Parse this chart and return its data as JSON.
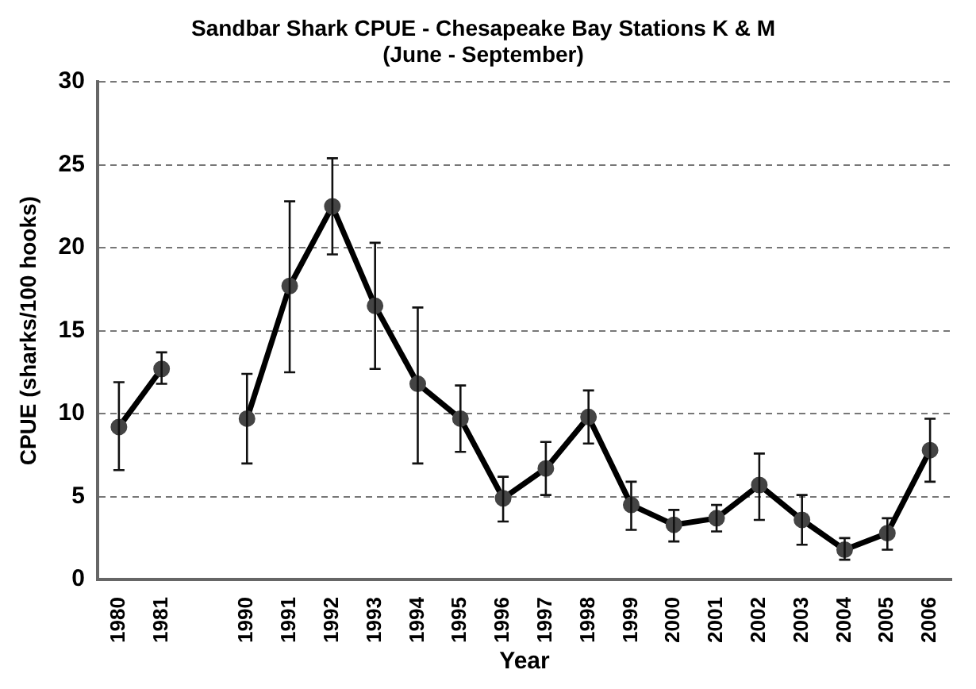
{
  "chart_data": {
    "type": "line",
    "title": "Sandbar Shark CPUE - Chesapeake Bay Stations K & M",
    "subtitle": "(June - September)",
    "xlabel": "Year",
    "ylabel": "CPUE (sharks/100 hooks)",
    "categories": [
      "1980",
      "1981",
      null,
      "1990",
      "1991",
      "1992",
      "1993",
      "1994",
      "1995",
      "1996",
      "1997",
      "1998",
      "1999",
      "2000",
      "2001",
      "2002",
      "2003",
      "2004",
      "2005",
      "2006"
    ],
    "series": [
      {
        "color": "#000000",
        "values": [
          9.2,
          12.7,
          null,
          9.7,
          17.7,
          22.5,
          16.5,
          11.8,
          9.7,
          4.9,
          6.7,
          9.8,
          4.5,
          3.3,
          3.7,
          5.7,
          3.6,
          1.8,
          2.8,
          7.8
        ],
        "errors": [
          [
            6.6,
            11.9
          ],
          [
            11.8,
            13.7
          ],
          null,
          [
            7.0,
            12.4
          ],
          [
            12.5,
            22.8
          ],
          [
            19.6,
            25.4
          ],
          [
            12.7,
            20.3
          ],
          [
            7.0,
            16.4
          ],
          [
            7.7,
            11.7
          ],
          [
            3.5,
            6.2
          ],
          [
            5.1,
            8.3
          ],
          [
            8.2,
            11.4
          ],
          [
            3.0,
            5.9
          ],
          [
            2.3,
            4.2
          ],
          [
            2.9,
            4.5
          ],
          [
            3.6,
            7.6
          ],
          [
            2.1,
            5.1
          ],
          [
            1.2,
            2.5
          ],
          [
            1.8,
            3.7
          ],
          [
            5.9,
            9.7
          ]
        ]
      }
    ],
    "ylim": [
      0,
      30
    ],
    "yticks": [
      0,
      5,
      10,
      15,
      20,
      25,
      30
    ],
    "grid": "y",
    "legend": false,
    "marker": "circle",
    "line_style": "solid"
  }
}
